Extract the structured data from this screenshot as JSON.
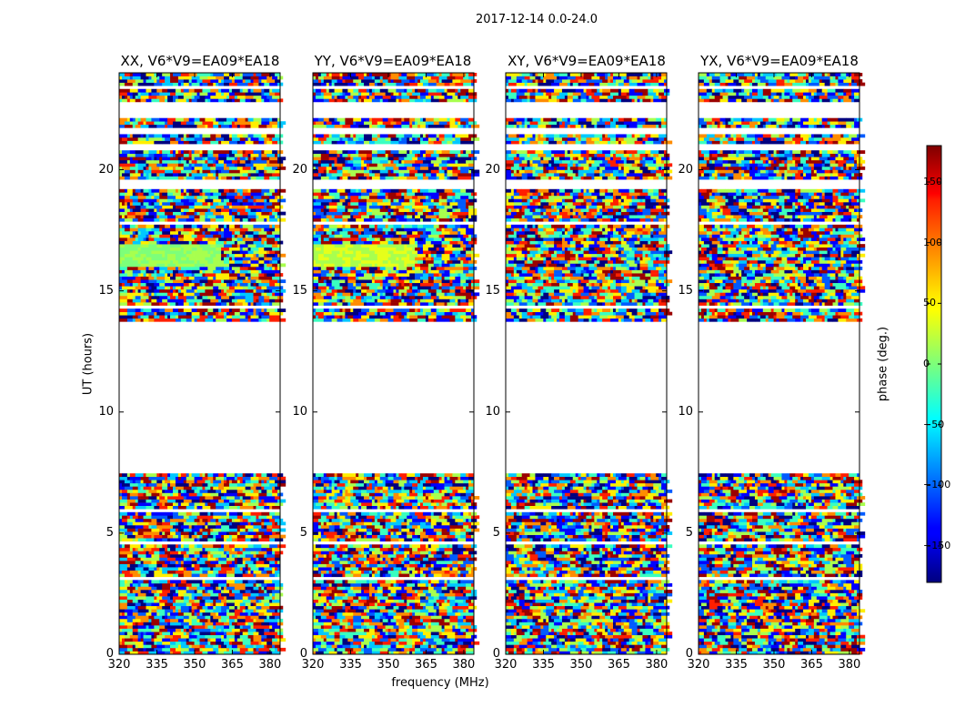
{
  "suptitle": "2017-12-14 0.0-24.0",
  "chart_data": {
    "type": "heatmap",
    "panels": [
      {
        "title": "XX, V6*V9=EA09*EA18",
        "pol": "XX"
      },
      {
        "title": "YY, V6*V9=EA09*EA18",
        "pol": "YY"
      },
      {
        "title": "XY, V6*V9=EA09*EA18",
        "pol": "XY"
      },
      {
        "title": "YX, V6*V9=EA09*EA18",
        "pol": "YX"
      }
    ],
    "xlabel": "frequency (MHz)",
    "ylabel": "UT (hours)",
    "xlim": [
      320,
      384
    ],
    "ylim": [
      0,
      24
    ],
    "xticks": [
      320,
      335,
      350,
      365,
      380
    ],
    "yticks": [
      0,
      5,
      10,
      15,
      20
    ],
    "colorbar": {
      "label": "phase (deg.)",
      "range": [
        -180,
        180
      ],
      "ticks": [
        150,
        100,
        50,
        0,
        -50,
        -100,
        -150
      ],
      "tick_labels": [
        "150",
        "100",
        "50",
        "0",
        "−50",
        "−100",
        "−150"
      ],
      "colormap": "jet"
    },
    "data_gap_hours": [
      7.5,
      13.7
    ],
    "coherent_band_hours": [
      16.0,
      17.0
    ]
  }
}
